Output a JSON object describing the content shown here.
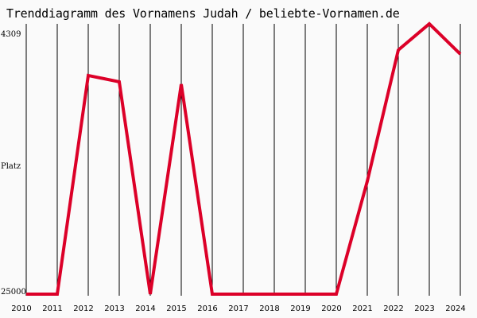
{
  "chart_data": {
    "type": "line",
    "title": "Trenddiagramm des Vornamens Judah / beliebte-Vornamen.de",
    "ylabel": "Platz",
    "xlabel": "",
    "y_tick_labels": [
      "4309",
      "25000"
    ],
    "ylim": [
      25000,
      4309
    ],
    "y_inverted": true,
    "grid": "vertical",
    "x": [
      "2010",
      "2011",
      "2012",
      "2013",
      "2014",
      "2015",
      "2016",
      "2017",
      "2018",
      "2019",
      "2020",
      "2021",
      "2022",
      "2023",
      "2024"
    ],
    "series": [
      {
        "name": "Judah",
        "color": "#dc0028",
        "values": [
          25000,
          25000,
          7650,
          8150,
          25000,
          8340,
          25000,
          25000,
          25000,
          25000,
          25000,
          16040,
          5630,
          3550,
          5950
        ]
      }
    ]
  }
}
